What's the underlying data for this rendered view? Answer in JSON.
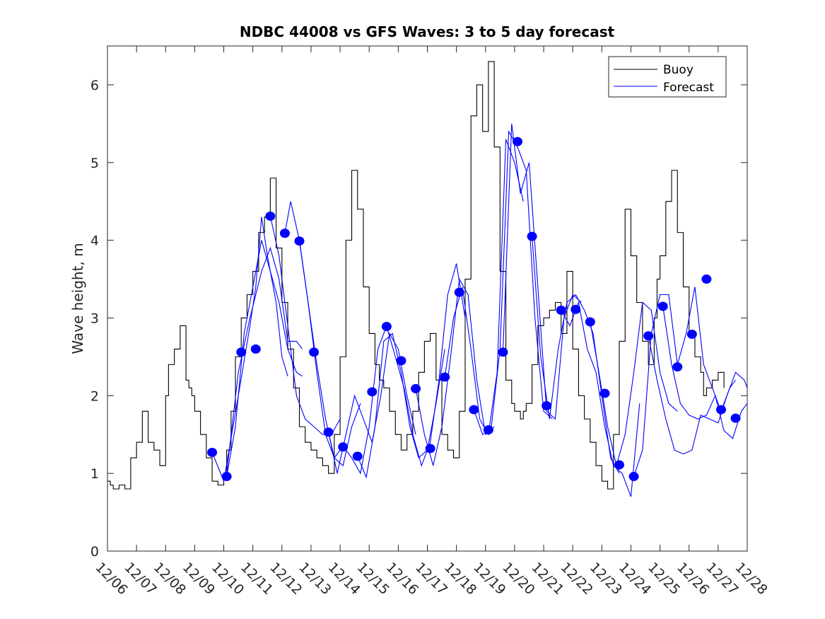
{
  "chart_data": {
    "type": "line",
    "title": "NDBC 44008 vs GFS Waves: 3 to 5 day forecast",
    "xlabel": "",
    "ylabel": "Wave height, m",
    "ylim": [
      0,
      6.5
    ],
    "yticks": [
      0,
      1,
      2,
      3,
      4,
      5,
      6
    ],
    "xlim_days": [
      0,
      22
    ],
    "xtick_labels": [
      "12/06",
      "12/07",
      "12/08",
      "12/09",
      "12/10",
      "12/11",
      "12/12",
      "12/13",
      "12/14",
      "12/15",
      "12/16",
      "12/17",
      "12/18",
      "12/19",
      "12/20",
      "12/21",
      "12/22",
      "12/23",
      "12/24",
      "12/25",
      "12/26",
      "12/27",
      "12/28"
    ],
    "grid": false,
    "legend": {
      "position": "top-right",
      "entries": [
        {
          "label": "Buoy",
          "color": "#000000"
        },
        {
          "label": "Forecast",
          "color": "#0000ff"
        }
      ]
    },
    "colors": {
      "buoy": "#000000",
      "forecast": "#0000ff",
      "marker": "#0000ff"
    },
    "series": [
      {
        "name": "Buoy",
        "x_days": [
          0,
          0.1,
          0.2,
          0.4,
          0.6,
          0.8,
          1.0,
          1.2,
          1.4,
          1.6,
          1.8,
          2.0,
          2.1,
          2.3,
          2.5,
          2.7,
          2.8,
          2.9,
          3.0,
          3.2,
          3.4,
          3.6,
          3.8,
          4.0,
          4.1,
          4.25,
          4.4,
          4.6,
          4.8,
          5.0,
          5.2,
          5.4,
          5.6,
          5.8,
          6.0,
          6.2,
          6.4,
          6.6,
          6.8,
          7.0,
          7.2,
          7.4,
          7.6,
          7.8,
          8.0,
          8.2,
          8.4,
          8.6,
          8.8,
          9.0,
          9.2,
          9.35,
          9.5,
          9.7,
          9.9,
          10.1,
          10.3,
          10.5,
          10.7,
          10.9,
          11.1,
          11.3,
          11.5,
          11.7,
          11.9,
          12.1,
          12.3,
          12.5,
          12.7,
          12.9,
          13.1,
          13.3,
          13.5,
          13.7,
          13.9,
          14.0,
          14.1,
          14.2,
          14.3,
          14.4,
          14.6,
          14.8,
          15.0,
          15.2,
          15.4,
          15.6,
          15.8,
          16.0,
          16.2,
          16.4,
          16.6,
          16.8,
          17.0,
          17.2,
          17.4,
          17.6,
          17.8,
          18.0,
          18.2,
          18.4,
          18.6,
          18.8,
          18.9,
          19.0,
          19.2,
          19.4,
          19.6,
          19.8,
          20.0,
          20.2,
          20.4,
          20.5,
          20.6,
          20.8,
          21.0,
          21.2
        ],
        "values": [
          0.9,
          0.85,
          0.8,
          0.85,
          0.8,
          1.2,
          1.4,
          1.8,
          1.4,
          1.3,
          1.1,
          2.0,
          2.4,
          2.6,
          2.9,
          2.2,
          2.1,
          2.0,
          1.8,
          1.5,
          1.2,
          0.9,
          0.85,
          1.0,
          1.3,
          1.8,
          2.5,
          3.0,
          3.3,
          3.6,
          4.1,
          4.3,
          4.8,
          3.9,
          3.2,
          2.6,
          2.1,
          1.6,
          1.4,
          1.3,
          1.2,
          1.1,
          1.0,
          1.5,
          2.5,
          4.0,
          4.9,
          4.4,
          3.4,
          2.8,
          2.4,
          2.2,
          2.1,
          1.8,
          1.5,
          1.3,
          1.5,
          1.8,
          2.3,
          2.7,
          2.8,
          2.2,
          1.5,
          1.3,
          1.2,
          1.8,
          3.5,
          5.6,
          6.0,
          5.4,
          6.3,
          5.2,
          3.6,
          2.2,
          1.9,
          1.8,
          1.8,
          1.7,
          1.8,
          1.9,
          2.4,
          2.9,
          3.0,
          3.1,
          3.2,
          2.8,
          3.6,
          2.6,
          2.0,
          1.7,
          1.4,
          1.1,
          0.9,
          0.8,
          1.5,
          2.7,
          4.4,
          3.8,
          3.2,
          2.7,
          2.4,
          3.0,
          3.5,
          3.8,
          4.5,
          4.9,
          4.1,
          3.4,
          2.8,
          2.5,
          2.3,
          2.0,
          2.1,
          2.2,
          2.3,
          2.1
        ]
      },
      {
        "name": "Forecast",
        "markers": {
          "x_days": [
            3.6,
            4.1,
            4.6,
            5.1,
            5.6,
            6.1,
            6.6,
            7.1,
            7.6,
            8.1,
            8.6,
            9.1,
            9.6,
            10.1,
            10.6,
            11.1,
            11.6,
            12.1,
            12.6,
            13.1,
            13.6,
            14.1,
            14.6,
            15.1,
            15.6,
            16.1,
            16.6,
            17.1,
            17.6,
            18.1,
            18.6,
            19.1,
            19.6,
            20.1,
            20.6,
            21.1,
            21.6
          ],
          "values": [
            1.27,
            0.96,
            2.56,
            2.6,
            4.31,
            4.09,
            3.99,
            2.56,
            1.53,
            1.34,
            1.22,
            2.05,
            2.89,
            2.45,
            2.09,
            1.32,
            2.24,
            3.33,
            1.82,
            1.56,
            2.56,
            5.27,
            4.05,
            1.87,
            3.1,
            3.11,
            2.95,
            2.03,
            1.11,
            0.96,
            2.77,
            3.15,
            2.37,
            2.79,
            3.5,
            1.82,
            1.71
          ]
        },
        "runs": [
          {
            "x_days": [
              3.6,
              4.0,
              4.5,
              4.9,
              5.1,
              5.3,
              5.5,
              5.8,
              6.0,
              6.2
            ],
            "values": [
              1.27,
              0.9,
              2.0,
              2.9,
              3.4,
              4.3,
              3.8,
              3.2,
              2.5,
              2.25
            ]
          },
          {
            "x_days": [
              4.1,
              4.4,
              4.7,
              5.0,
              5.3,
              5.6,
              5.9,
              6.2,
              6.5,
              6.7
            ],
            "values": [
              0.96,
              1.6,
              2.8,
              3.4,
              4.0,
              3.6,
              3.2,
              2.6,
              2.3,
              2.25
            ]
          },
          {
            "x_days": [
              4.1,
              4.5,
              4.9,
              5.3,
              5.6,
              5.9,
              6.2,
              6.5,
              6.7
            ],
            "values": [
              1.0,
              2.3,
              3.0,
              3.6,
              3.9,
              3.5,
              2.7,
              2.7,
              2.6
            ]
          },
          {
            "x_days": [
              5.6,
              5.9,
              6.2,
              6.5,
              6.8,
              7.1,
              7.4,
              7.7,
              8.0
            ],
            "values": [
              4.31,
              3.8,
              2.9,
              2.0,
              1.7,
              1.6,
              1.5,
              1.5,
              1.7
            ]
          },
          {
            "x_days": [
              6.1,
              6.3,
              6.6,
              6.9,
              7.2,
              7.5,
              7.8,
              8.1,
              8.4,
              8.7
            ],
            "values": [
              4.09,
              4.5,
              4.0,
              3.2,
              2.4,
              1.7,
              1.2,
              1.1,
              1.6,
              1.9
            ]
          },
          {
            "x_days": [
              6.6,
              6.9,
              7.2,
              7.5,
              7.8,
              8.1,
              8.4,
              8.7,
              9.0,
              9.3,
              9.6
            ],
            "values": [
              3.99,
              3.2,
              2.3,
              1.5,
              1.2,
              1.35,
              1.2,
              1.0,
              1.6,
              2.6,
              2.9
            ]
          },
          {
            "x_days": [
              7.6,
              7.9,
              8.2,
              8.5,
              8.8,
              9.1,
              9.4,
              9.7,
              10.0,
              10.3,
              10.6
            ],
            "values": [
              1.53,
              1.0,
              1.5,
              2.0,
              1.7,
              1.4,
              2.0,
              2.8,
              2.6,
              2.0,
              1.5
            ]
          },
          {
            "x_days": [
              8.6,
              8.9,
              9.2,
              9.5,
              9.8,
              10.1,
              10.4,
              10.7,
              11.0,
              11.3,
              11.6
            ],
            "values": [
              1.22,
              0.95,
              1.6,
              2.7,
              2.8,
              2.3,
              1.6,
              1.2,
              1.3,
              1.9,
              2.6
            ]
          },
          {
            "x_days": [
              9.6,
              9.9,
              10.2,
              10.5,
              10.8,
              11.1,
              11.4,
              11.7,
              12.0,
              12.3
            ],
            "values": [
              2.89,
              2.5,
              2.1,
              1.5,
              1.1,
              1.4,
              2.2,
              3.3,
              3.7,
              3.0
            ]
          },
          {
            "x_days": [
              10.6,
              10.9,
              11.2,
              11.5,
              11.8,
              12.1,
              12.4,
              12.7,
              13.0,
              13.3
            ],
            "values": [
              2.09,
              1.5,
              1.1,
              1.6,
              2.5,
              3.5,
              3.3,
              2.2,
              1.5,
              1.6
            ]
          },
          {
            "x_days": [
              11.6,
              11.9,
              12.2,
              12.5,
              12.8,
              13.1,
              13.4,
              13.7,
              14.0,
              14.3
            ],
            "values": [
              2.24,
              3.0,
              3.4,
              2.6,
              1.7,
              1.5,
              2.3,
              5.3,
              5.0,
              4.5
            ]
          },
          {
            "x_days": [
              12.6,
              12.9,
              13.2,
              13.5,
              13.8,
              14.1,
              14.4,
              14.7,
              15.0,
              15.3
            ],
            "values": [
              1.82,
              1.5,
              1.6,
              2.6,
              5.4,
              5.2,
              4.9,
              3.0,
              1.8,
              1.7
            ]
          },
          {
            "x_days": [
              13.6,
              13.9,
              14.2,
              14.5,
              14.8,
              15.1,
              15.4,
              15.7,
              16.0,
              16.3
            ],
            "values": [
              2.56,
              5.5,
              4.6,
              5.0,
              3.4,
              1.8,
              1.7,
              3.0,
              3.3,
              3.2
            ]
          },
          {
            "x_days": [
              14.6,
              14.9,
              15.2,
              15.5,
              15.8,
              16.1,
              16.4,
              16.7,
              17.0,
              17.3,
              17.6
            ],
            "values": [
              4.05,
              2.5,
              1.7,
              2.6,
              3.2,
              3.3,
              3.1,
              2.8,
              2.0,
              1.2,
              1.0
            ]
          },
          {
            "x_days": [
              15.6,
              15.9,
              16.2,
              16.5,
              16.8,
              17.1,
              17.4,
              17.7,
              18.0,
              18.3
            ],
            "values": [
              3.1,
              2.9,
              3.2,
              2.6,
              2.3,
              1.6,
              1.1,
              1.0,
              0.7,
              1.9
            ]
          },
          {
            "x_days": [
              16.6,
              16.9,
              17.2,
              17.5,
              17.8,
              18.1,
              18.4,
              18.7,
              19.0,
              19.3,
              19.6
            ],
            "values": [
              2.95,
              2.3,
              1.6,
              1.1,
              1.5,
              2.3,
              3.2,
              3.1,
              2.3,
              1.9,
              1.8
            ]
          },
          {
            "x_days": [
              18.1,
              18.4,
              18.7,
              19.0,
              19.3,
              19.6,
              19.9,
              20.2,
              20.5,
              20.8,
              21.1,
              21.4,
              21.6
            ],
            "values": [
              0.96,
              1.3,
              2.8,
              3.3,
              3.3,
              2.4,
              2.8,
              3.4,
              2.4,
              2.1,
              1.8,
              2.1,
              2.2
            ]
          },
          {
            "x_days": [
              18.6,
              18.9,
              19.2,
              19.5,
              19.8,
              20.1,
              20.4,
              20.7,
              21.0,
              21.3,
              21.6,
              21.9,
              22.0
            ],
            "values": [
              2.77,
              2.2,
              1.7,
              1.3,
              1.25,
              1.3,
              1.75,
              1.7,
              1.65,
              2.0,
              2.3,
              2.2,
              2.1
            ]
          },
          {
            "x_days": [
              19.1,
              19.4,
              19.7,
              20.0,
              20.3,
              20.6,
              20.9,
              21.2,
              21.5,
              21.8,
              22.0
            ],
            "values": [
              3.15,
              2.4,
              1.9,
              1.75,
              1.7,
              1.75,
              2.0,
              1.55,
              1.45,
              1.8,
              1.9
            ]
          }
        ]
      }
    ]
  }
}
